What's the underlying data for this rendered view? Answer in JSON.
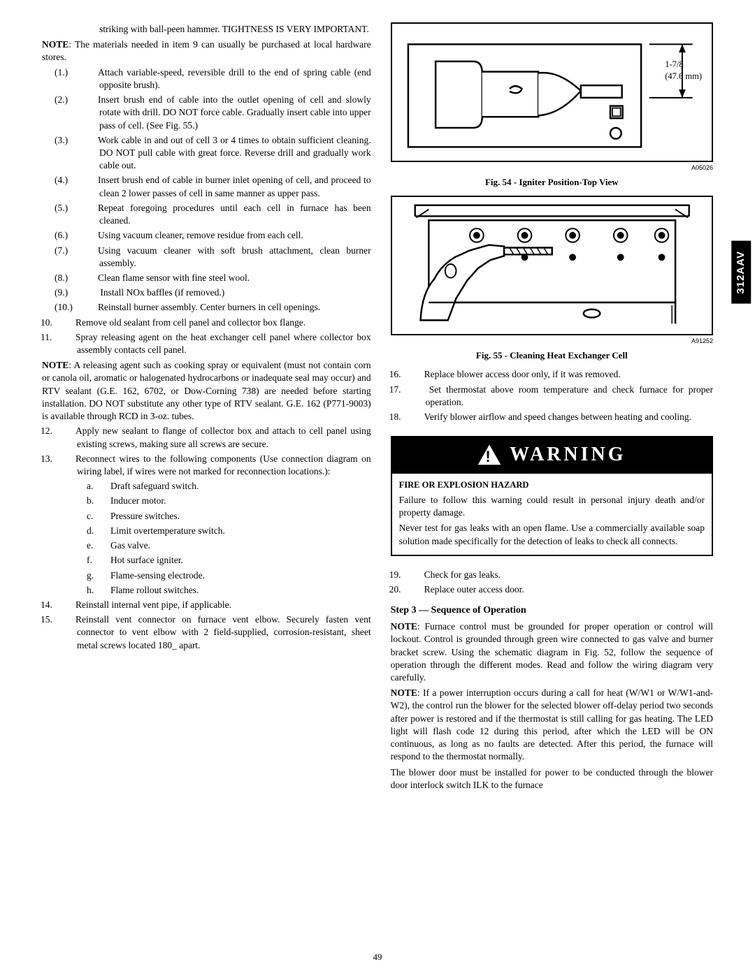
{
  "sidebar_model": "312AAV",
  "page_number": "49",
  "left_column": {
    "top_continuation": "striking with ball-peen hammer. TIGHTNESS IS VERY IMPORTANT.",
    "note1_label": "NOTE",
    "note1_text": ":  The materials needed in item 9 can usually be purchased at local hardware stores.",
    "sub_steps": [
      {
        "n": "(1.)",
        "t": "Attach variable-speed, reversible drill to the end of spring cable (end opposite brush)."
      },
      {
        "n": "(2.)",
        "t": "Insert brush end of cable into the outlet opening of cell and slowly rotate with drill. DO NOT force cable. Gradually insert cable into upper pass of cell. (See Fig. 55.)"
      },
      {
        "n": "(3.)",
        "t": "Work cable in and out of cell 3 or 4 times to obtain sufficient cleaning. DO NOT pull cable with great force. Reverse drill and gradually work cable out."
      },
      {
        "n": "(4.)",
        "t": "Insert brush end of cable in burner inlet opening of cell, and proceed to clean 2 lower passes of cell in same manner as upper pass."
      },
      {
        "n": "(5.)",
        "t": "Repeat foregoing procedures until each cell in furnace has been cleaned."
      },
      {
        "n": "(6.)",
        "t": "Using vacuum cleaner, remove residue from each cell."
      },
      {
        "n": "(7.)",
        "t": "Using vacuum cleaner with soft brush attachment, clean burner assembly."
      },
      {
        "n": "(8.)",
        "t": "Clean flame sensor with fine steel wool."
      },
      {
        "n": "(9.)",
        "t": " Install NOx baffles (if removed.)"
      },
      {
        "n": "(10.)",
        "t": "Reinstall burner assembly. Center burners in cell openings."
      }
    ],
    "steps_after": [
      {
        "n": "10.",
        "t": "Remove old sealant from cell panel and collector box flange."
      },
      {
        "n": "11.",
        "t": "Spray releasing agent on the heat exchanger cell panel where collector box assembly contacts cell panel."
      }
    ],
    "note2_label": "NOTE",
    "note2_text": ":  A releasing agent such as cooking spray or equivalent (must not contain corn or canola oil, aromatic or halogenated hydrocarbons or inadequate seal may occur) and RTV sealant (G.E. 162, 6702, or Dow-Corning 738) are needed before starting installation. DO NOT substitute any other type of RTV sealant. G.E. 162 (P771-9003) is available through RCD in 3-oz. tubes.",
    "steps12_15": [
      {
        "n": "12.",
        "t": "Apply new sealant to flange of collector box and attach to cell panel using existing screws, making sure all screws are secure."
      },
      {
        "n": "13.",
        "t": "Reconnect wires to the following components (Use connection diagram on wiring label, if wires were not marked for reconnection locations.):"
      }
    ],
    "sublist13": [
      {
        "l": "a.",
        "t": "Draft safeguard switch."
      },
      {
        "l": "b.",
        "t": "Inducer motor."
      },
      {
        "l": "c.",
        "t": "Pressure switches."
      },
      {
        "l": "d.",
        "t": "Limit overtemperature switch."
      },
      {
        "l": "e.",
        "t": "Gas valve."
      },
      {
        "l": "f.",
        "t": "Hot surface igniter."
      },
      {
        "l": "g.",
        "t": "Flame-sensing electrode."
      },
      {
        "l": "h.",
        "t": "Flame rollout switches."
      }
    ],
    "steps14_15": [
      {
        "n": "14.",
        "t": "Reinstall internal vent pipe, if applicable."
      },
      {
        "n": "15.",
        "t": "Reinstall vent connector on furnace vent elbow. Securely fasten vent connector to vent elbow with 2 field-supplied, corrosion-resistant, sheet metal screws located 180_ apart."
      }
    ]
  },
  "right_column": {
    "fig54": {
      "dim_label_1": "1-7/8",
      "dim_label_2": "(47.6 mm)",
      "code": "A05026",
      "caption": "Fig. 54 - Igniter Position-Top View"
    },
    "fig55": {
      "code": "A91252",
      "caption": "Fig. 55 -  Cleaning Heat Exchanger Cell"
    },
    "steps16_18": [
      {
        "n": "16.",
        "t": "Replace blower access door only, if it was removed."
      },
      {
        "n": "17.",
        "t": " Set thermostat above room temperature and check furnace for proper operation."
      },
      {
        "n": "18.",
        "t": "Verify blower airflow and speed changes between heating and cooling."
      }
    ],
    "warning": {
      "header": "WARNING",
      "title": "FIRE OR EXPLOSION HAZARD",
      "p1": "Failure to follow this warning could result in personal injury  death and/or property damage.",
      "p2": "Never test for gas leaks with an open flame.  Use a commercially available soap solution made specifically for the detection of leaks to check all connects."
    },
    "steps19_20": [
      {
        "n": "19.",
        "t": "Check for gas leaks."
      },
      {
        "n": "20.",
        "t": "Replace outer access door."
      }
    ],
    "step3_heading": "Step 3 — Sequence of Operation",
    "note3_label": "NOTE",
    "note3_text": ":  Furnace control must be grounded for proper operation or control will lockout. Control is grounded through green wire connected to gas valve and burner bracket screw. Using the schematic diagram in Fig. 52, follow the sequence of operation through the different modes. Read and follow the wiring diagram very carefully.",
    "note4_label": "NOTE",
    "note4_text": ":  If a power interruption occurs during a call for heat (W/W1 or W/W1-and-W2), the control run the blower for the selected blower off-delay period two seconds after power is restored and if the thermostat is still calling for gas heating. The LED light will flash code 12 during this period, after which the LED will be ON continuous, as long as no faults are detected. After this period, the furnace will respond to the thermostat normally.",
    "para_last": "The blower door must be installed for power to be conducted through the blower door interlock switch ILK to the furnace"
  }
}
